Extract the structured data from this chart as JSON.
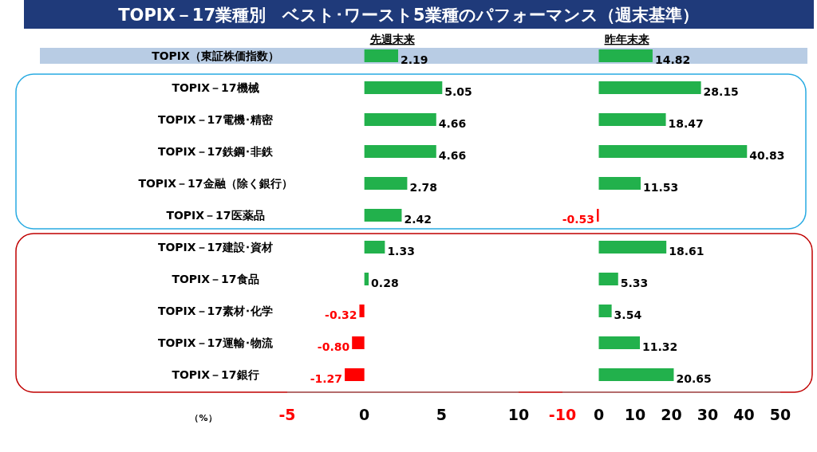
{
  "chart_data": [
    {
      "type": "bar",
      "orientation": "horizontal",
      "title": "TOPIX－17業種別　ベスト･ワースト5業種のパフォーマンス（週末基準）",
      "subtitle": "先週末来",
      "xlabel": "（%）",
      "categories": [
        "TOPIX（東証株価指数）",
        "TOPIX－17機械",
        "TOPIX－17電機･精密",
        "TOPIX－17鉄鋼･非鉄",
        "TOPIX－17金融（除く銀行）",
        "TOPIX－17医薬品",
        "TOPIX－17建設･資材",
        "TOPIX－17食品",
        "TOPIX－17素材･化学",
        "TOPIX－17運輸･物流",
        "TOPIX－17銀行"
      ],
      "values": [
        2.19,
        5.05,
        4.66,
        4.66,
        2.78,
        2.42,
        1.33,
        0.28,
        -0.32,
        -0.8,
        -1.27
      ],
      "value_labels": [
        "2.19",
        "5.05",
        "4.66",
        "4.66",
        "2.78",
        "2.42",
        "1.33",
        "0.28",
        "-0.32",
        "-0.80",
        "-1.27"
      ],
      "colors": [
        "#22b14c",
        "#22b14c",
        "#22b14c",
        "#22b14c",
        "#22b14c",
        "#22b14c",
        "#22b14c",
        "#22b14c",
        "#ff0000",
        "#ff0000",
        "#ff0000"
      ],
      "bands": [
        {
          "axis": "y",
          "from": "TOPIX（東証株価指数）",
          "to": "TOPIX（東証株価指数）",
          "color": "#b8cce4"
        }
      ],
      "xlim": [
        -5,
        10
      ],
      "xticks": [
        -5,
        0,
        5,
        10
      ],
      "grid": false
    },
    {
      "type": "bar",
      "orientation": "horizontal",
      "subtitle": "昨年末来",
      "tick_labels": "x",
      "categories": [
        "TOPIX（東証株価指数）",
        "TOPIX－17機械",
        "TOPIX－17電機･精密",
        "TOPIX－17鉄鋼･非鉄",
        "TOPIX－17金融（除く銀行）",
        "TOPIX－17医薬品",
        "TOPIX－17建設･資材",
        "TOPIX－17食品",
        "TOPIX－17素材･化学",
        "TOPIX－17運輸･物流",
        "TOPIX－17銀行"
      ],
      "values": [
        14.82,
        28.15,
        18.47,
        40.83,
        11.53,
        -0.53,
        18.61,
        5.33,
        3.54,
        11.32,
        20.65
      ],
      "value_labels": [
        "14.82",
        "28.15",
        "18.47",
        "40.83",
        "11.53",
        "-0.53",
        "18.61",
        "5.33",
        "3.54",
        "11.32",
        "20.65"
      ],
      "colors": [
        "#22b14c",
        "#22b14c",
        "#22b14c",
        "#22b14c",
        "#22b14c",
        "#ff0000",
        "#22b14c",
        "#22b14c",
        "#22b14c",
        "#22b14c",
        "#22b14c"
      ],
      "bands": [
        {
          "axis": "y",
          "from": "TOPIX（東証株価指数）",
          "to": "TOPIX（東証株価指数）",
          "color": "#b8cce4"
        }
      ],
      "xlim": [
        -10,
        50
      ],
      "xticks": [
        -10,
        0,
        10,
        20,
        30,
        40,
        50
      ],
      "grid": false
    }
  ]
}
